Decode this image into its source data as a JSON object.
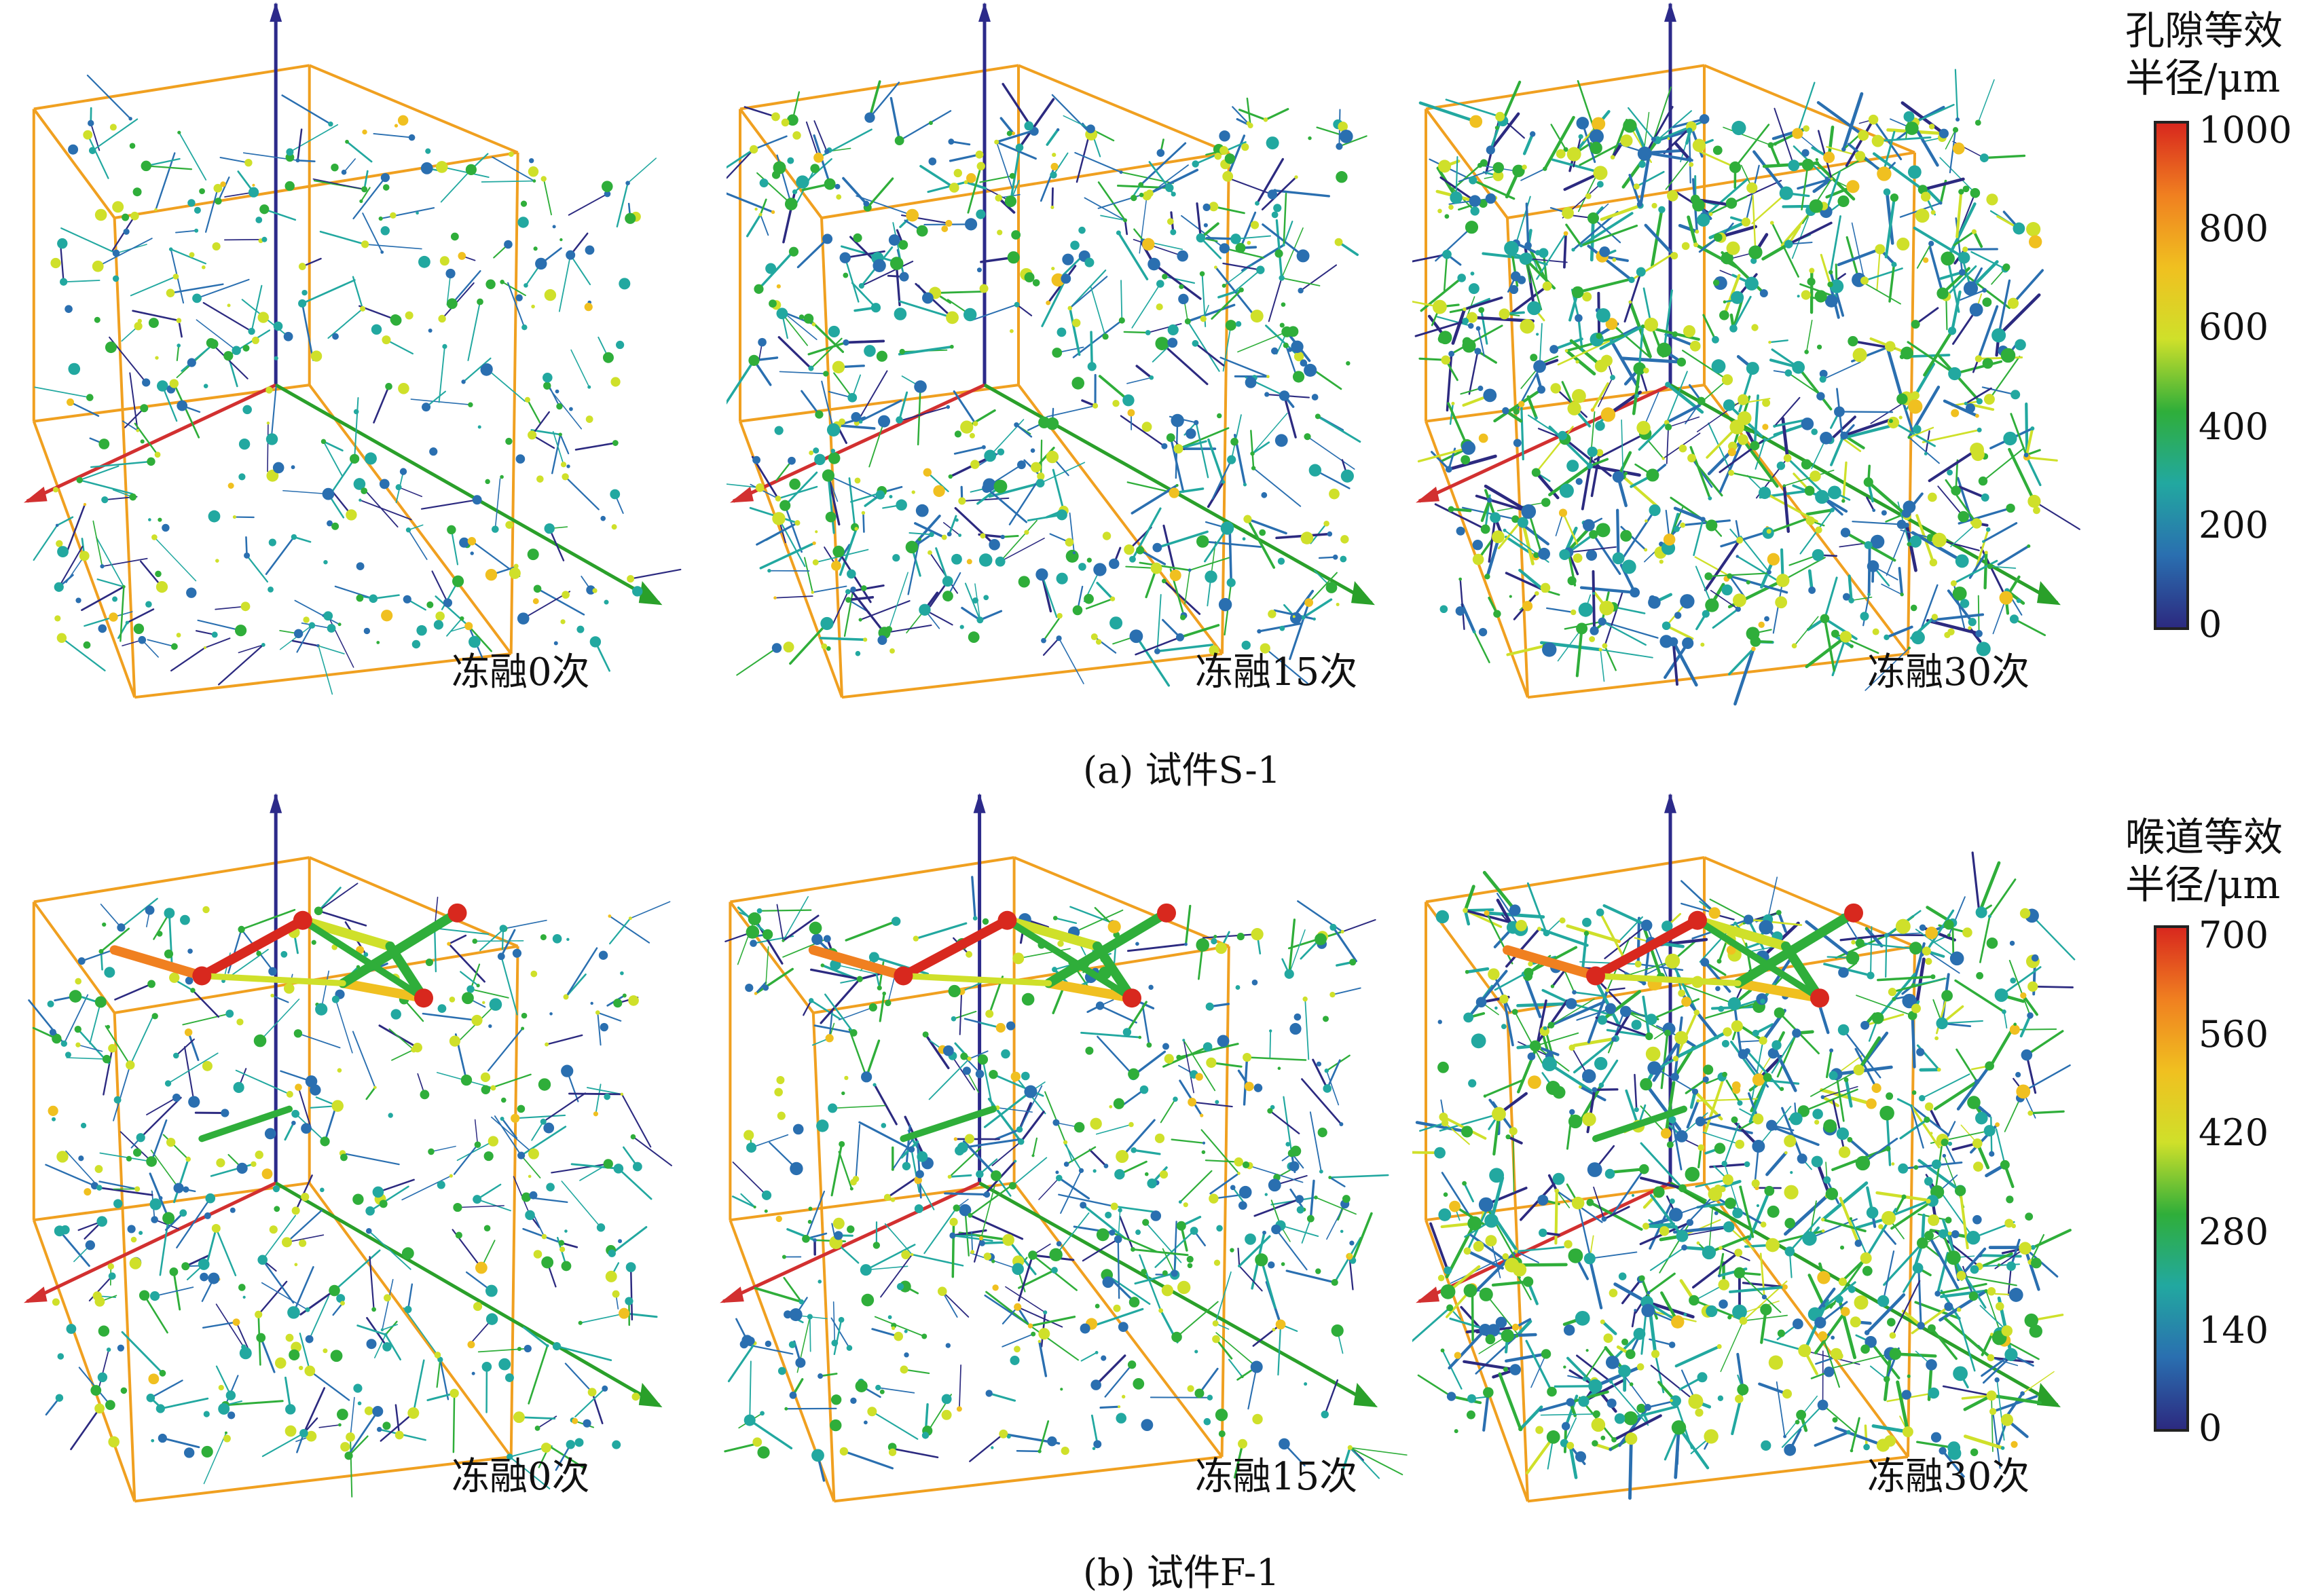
{
  "rows": [
    {
      "id": "a",
      "panel_label": "(a) 试件S-1",
      "colorbar": {
        "title_line1": "孔隙等效",
        "title_line2": "半径/μm",
        "ticks": [
          "1000",
          "800",
          "600",
          "400",
          "200",
          "0"
        ]
      },
      "cubes": [
        {
          "caption": "冻融0次",
          "density": 0.35,
          "big_throats": 0
        },
        {
          "caption": "冻融15次",
          "density": 0.65,
          "big_throats": 0
        },
        {
          "caption": "冻融30次",
          "density": 0.95,
          "big_throats": 0
        }
      ]
    },
    {
      "id": "b",
      "panel_label": "(b) 试件F-1",
      "colorbar": {
        "title_line1": "喉道等效",
        "title_line2": "半径/μm",
        "ticks": [
          "700",
          "560",
          "420",
          "280",
          "140",
          "0"
        ]
      },
      "cubes": [
        {
          "caption": "冻融0次",
          "density": 0.45,
          "big_throats": 1
        },
        {
          "caption": "冻融15次",
          "density": 0.6,
          "big_throats": 1
        },
        {
          "caption": "冻融30次",
          "density": 1.0,
          "big_throats": 1
        }
      ]
    }
  ],
  "colors": {
    "box_edge": "#f0a020",
    "axis_x": "#d23030",
    "axis_y": "#2aa02a",
    "axis_z": "#2c2a8a",
    "scale": [
      "#2c2a80",
      "#2a6fb0",
      "#22a8a0",
      "#2fae3a",
      "#cfe02a",
      "#f0c020",
      "#f08020",
      "#d8281e"
    ]
  }
}
